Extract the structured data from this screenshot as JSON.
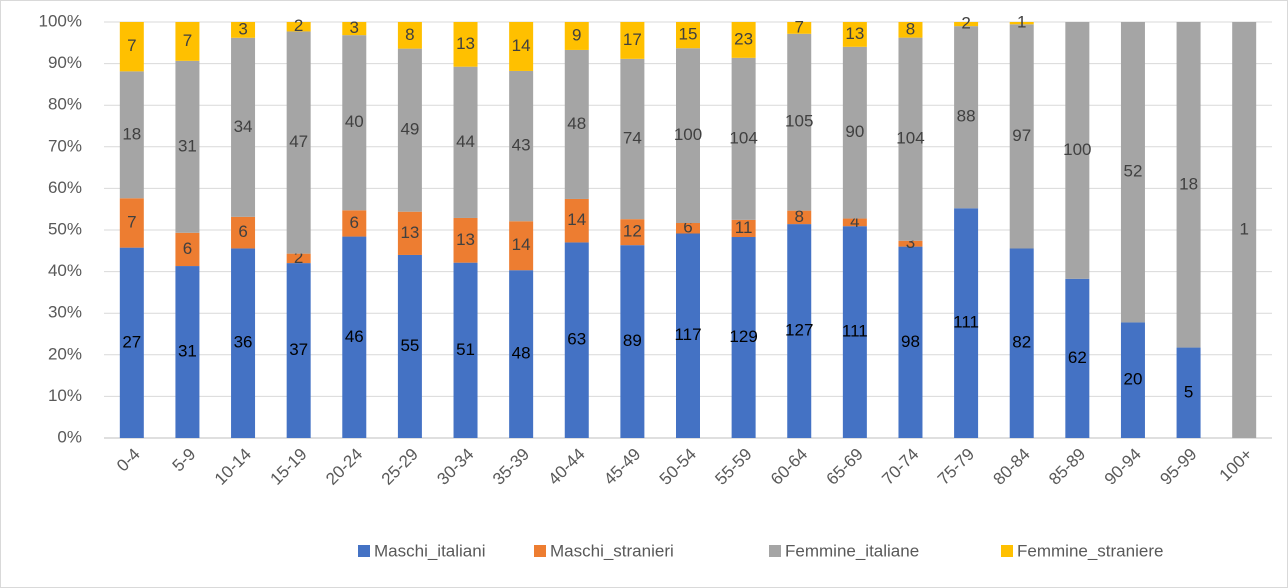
{
  "chart_data": {
    "type": "bar",
    "stacking": "percent",
    "categories": [
      "0-4",
      "5-9",
      "10-14",
      "15-19",
      "20-24",
      "25-29",
      "30-34",
      "35-39",
      "40-44",
      "45-49",
      "50-54",
      "55-59",
      "60-64",
      "65-69",
      "70-74",
      "75-79",
      "80-84",
      "85-89",
      "90-94",
      "95-99",
      "100+"
    ],
    "series": [
      {
        "name": "Maschi_italiani",
        "color": "#4472c4",
        "values": [
          27,
          31,
          36,
          37,
          46,
          55,
          51,
          48,
          63,
          89,
          117,
          129,
          127,
          111,
          98,
          111,
          82,
          62,
          20,
          5,
          0
        ]
      },
      {
        "name": "Maschi_stranieri",
        "color": "#ed7d31",
        "values": [
          7,
          6,
          6,
          2,
          6,
          13,
          13,
          14,
          14,
          12,
          6,
          11,
          8,
          4,
          3,
          0,
          0,
          0,
          0,
          0,
          0
        ]
      },
      {
        "name": "Femmine_italiane",
        "color": "#a5a5a5",
        "values": [
          18,
          31,
          34,
          47,
          40,
          49,
          44,
          43,
          48,
          74,
          100,
          104,
          105,
          90,
          104,
          88,
          97,
          100,
          52,
          18,
          1
        ]
      },
      {
        "name": "Femmine_straniere",
        "color": "#ffc000",
        "values": [
          7,
          7,
          3,
          2,
          3,
          8,
          13,
          14,
          9,
          17,
          15,
          23,
          7,
          13,
          8,
          2,
          1,
          0,
          0,
          0,
          0
        ]
      }
    ],
    "ylim": [
      0,
      100
    ],
    "yticks": [
      {
        "value": 0,
        "label": "0%"
      },
      {
        "value": 10,
        "label": "10%"
      },
      {
        "value": 20,
        "label": "20%"
      },
      {
        "value": 30,
        "label": "30%"
      },
      {
        "value": 40,
        "label": "40%"
      },
      {
        "value": 50,
        "label": "50%"
      },
      {
        "value": 60,
        "label": "60%"
      },
      {
        "value": 70,
        "label": "70%"
      },
      {
        "value": 80,
        "label": "80%"
      },
      {
        "value": 90,
        "label": "90%"
      },
      {
        "value": 100,
        "label": "100%"
      }
    ],
    "grid": true,
    "legend": "bottom"
  }
}
